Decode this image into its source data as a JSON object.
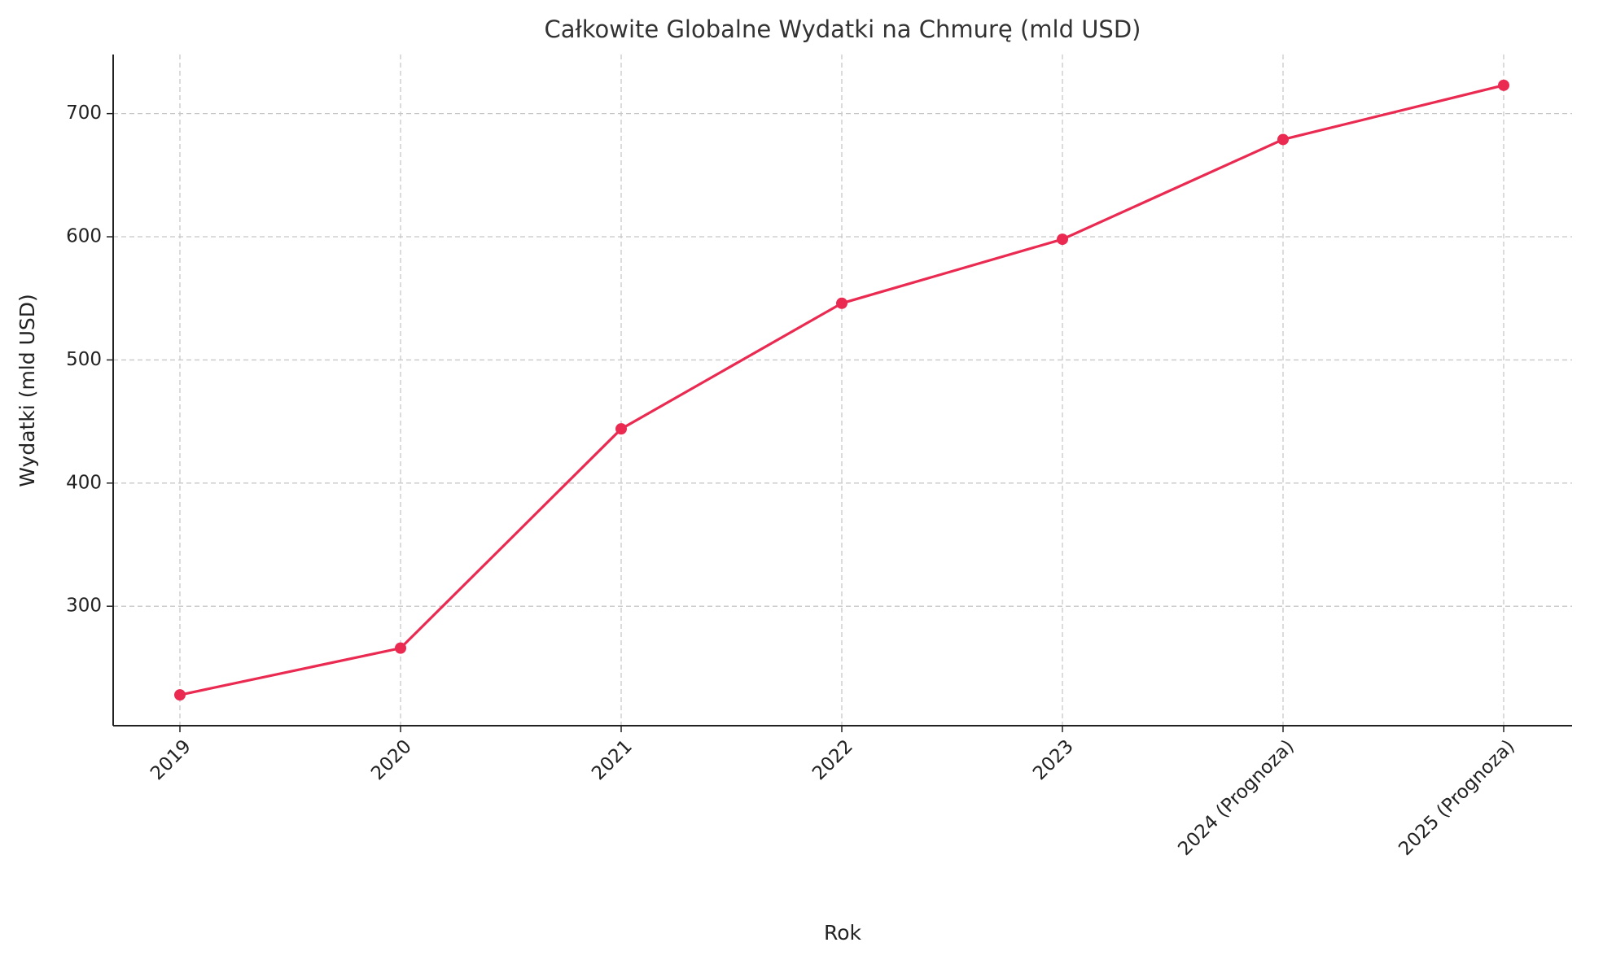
{
  "chart_data": {
    "type": "line",
    "title": "Całkowite Globalne Wydatki na Chmurę (mld USD)",
    "xlabel": "Rok",
    "ylabel": "Wydatki (mld USD)",
    "categories": [
      "2019",
      "2020",
      "2021",
      "2022",
      "2023",
      "2024 (Prognoza)",
      "2025 (Prognoza)"
    ],
    "values": [
      228,
      266,
      444,
      546,
      598,
      679,
      723
    ],
    "color": "#ea2a51",
    "ylim": [
      203,
      748
    ],
    "yticks": [
      300,
      400,
      500,
      600,
      700
    ],
    "grid": true
  }
}
